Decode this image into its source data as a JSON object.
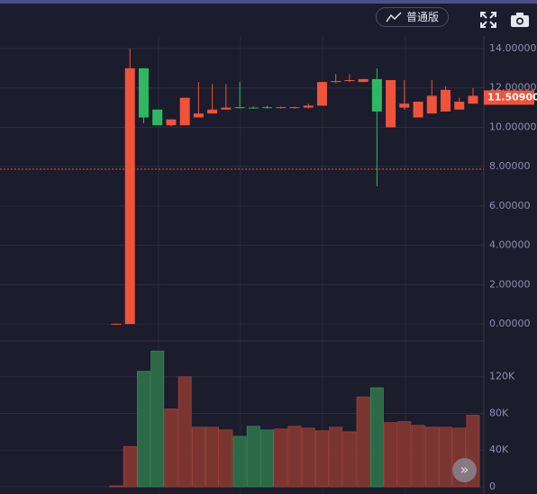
{
  "toolbar": {
    "mode_button": "普通版"
  },
  "chart_data": [
    {
      "type": "candlestick",
      "open": [
        0,
        0,
        13.0,
        10.9,
        10.1,
        10.1,
        10.5,
        10.7,
        10.9,
        11.02,
        11.0,
        11.02,
        11.0,
        11.0,
        11.0,
        11.1,
        12.3,
        12.35,
        12.3,
        12.45,
        10.0,
        11.0,
        10.5,
        10.7,
        10.8,
        10.9,
        11.2
      ],
      "high": [
        0.02,
        14.0,
        13.0,
        10.9,
        10.4,
        11.5,
        12.3,
        12.2,
        12.2,
        12.3,
        11.05,
        11.1,
        11.05,
        11.05,
        11.2,
        12.3,
        12.7,
        12.7,
        12.45,
        13.0,
        12.4,
        12.4,
        11.3,
        12.4,
        12.1,
        11.5,
        12.0
      ],
      "low": [
        0,
        0,
        10.2,
        10.1,
        10.05,
        10.1,
        10.5,
        10.7,
        10.9,
        10.95,
        10.95,
        10.95,
        10.95,
        10.95,
        10.95,
        11.1,
        12.25,
        12.3,
        12.3,
        7.0,
        10.0,
        10.9,
        10.5,
        10.7,
        10.8,
        10.9,
        11.2
      ],
      "close": [
        0.01,
        13.0,
        10.5,
        10.1,
        10.4,
        11.5,
        10.7,
        10.9,
        11.0,
        11.0,
        10.98,
        11.0,
        11.02,
        11.02,
        11.1,
        12.3,
        12.35,
        12.4,
        12.45,
        10.8,
        12.4,
        11.2,
        11.3,
        11.6,
        11.9,
        11.3,
        11.6
      ],
      "up_color": "#f0533a",
      "down_color": "#2eb862",
      "ylim": [
        -0.82,
        14.64
      ],
      "yticks": [
        {
          "value": 0,
          "label": "0.00000"
        },
        {
          "value": 2,
          "label": "2.00000"
        },
        {
          "value": 4,
          "label": "4.00000"
        },
        {
          "value": 6,
          "label": "6.00000"
        },
        {
          "value": 8,
          "label": "8.00000"
        },
        {
          "value": 10,
          "label": "10.00000"
        },
        {
          "value": 12,
          "label": "12.00000"
        },
        {
          "value": 14,
          "label": "14.00000"
        }
      ],
      "reference_line": 7.87,
      "reference_color": "#f0533a",
      "last_price": {
        "value": 11.509,
        "label": "11.50900"
      },
      "grid": true
    },
    {
      "type": "volume",
      "values": [
        1000,
        44000,
        126000,
        148000,
        85000,
        120000,
        65000,
        65000,
        62000,
        55000,
        66000,
        62000,
        63000,
        66000,
        64000,
        61000,
        65000,
        60000,
        98000,
        108000,
        70000,
        71000,
        67000,
        65000,
        65000,
        64000,
        78000
      ],
      "up_color": "#7a3530",
      "down_color": "#2c6a47",
      "ylim": [
        0,
        158000
      ],
      "yticks": [
        0,
        {
          "value": 40000,
          "label": "40K"
        },
        {
          "value": 80000,
          "label": "80K"
        },
        {
          "value": 120000,
          "label": "120K"
        }
      ],
      "grid": true
    }
  ]
}
